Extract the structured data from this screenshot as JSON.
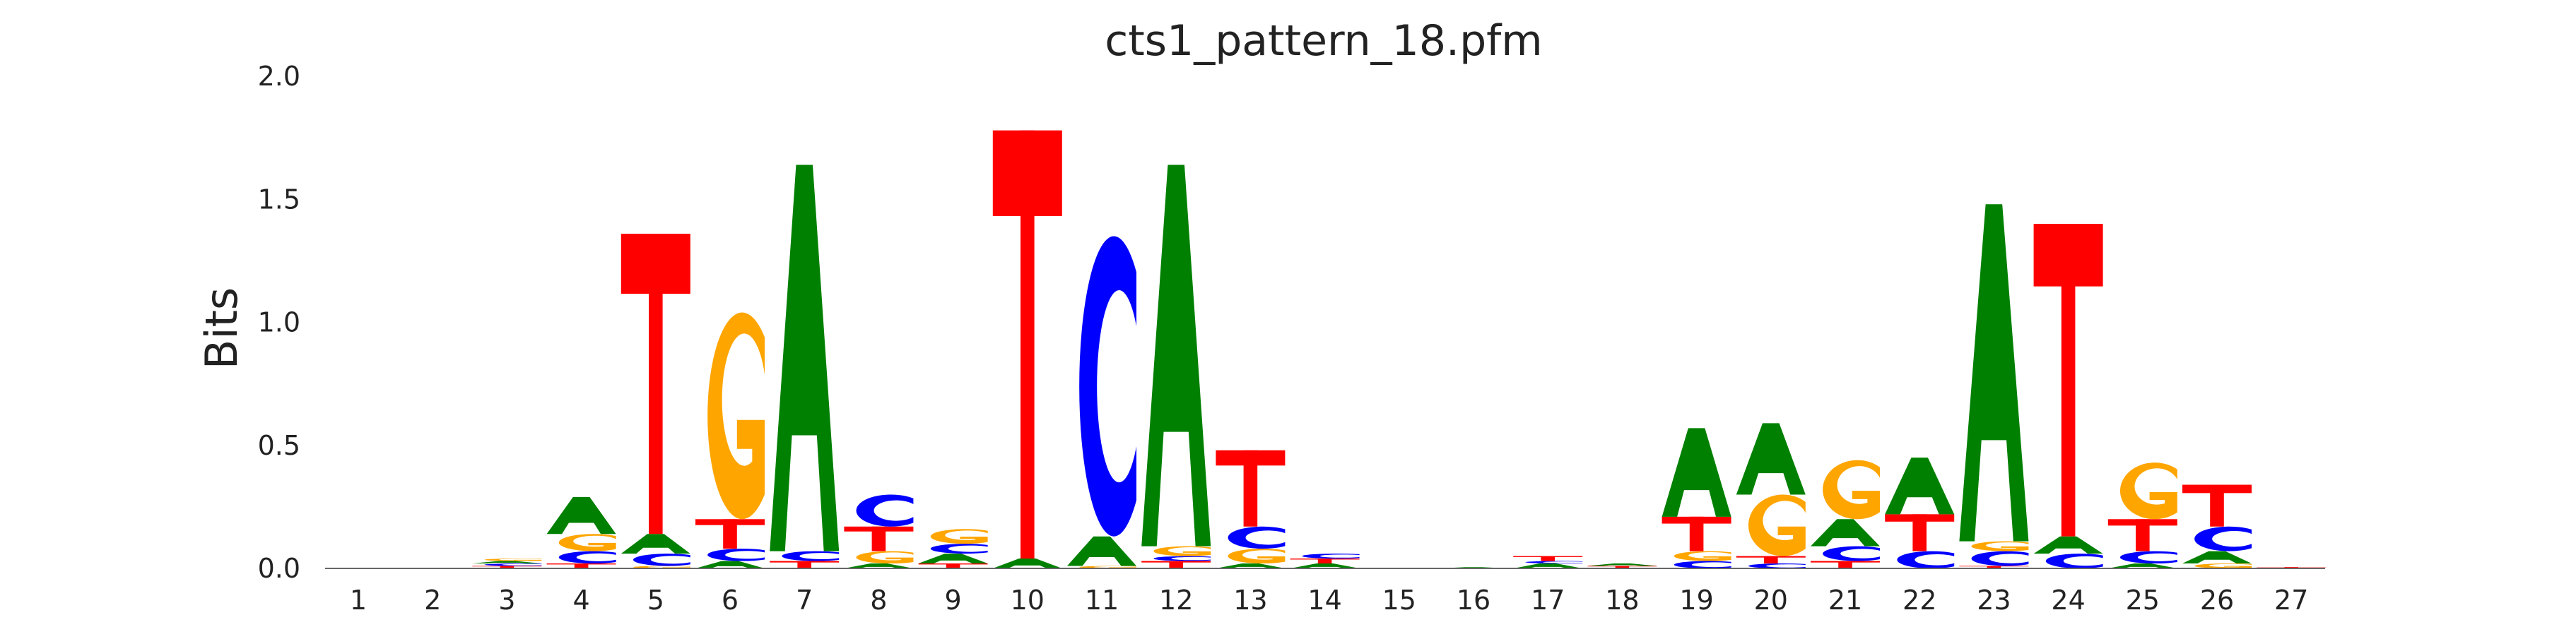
{
  "chart_data": {
    "type": "sequence-logo",
    "title": "cts1_pattern_18.pfm",
    "xlabel": "",
    "ylabel": "Bits",
    "ylim": [
      0,
      2.0
    ],
    "yticks": [
      "0.0",
      "0.5",
      "1.0",
      "1.5",
      "2.0"
    ],
    "positions": [
      "1",
      "2",
      "3",
      "4",
      "5",
      "6",
      "7",
      "8",
      "9",
      "10",
      "11",
      "12",
      "13",
      "14",
      "15",
      "16",
      "17",
      "18",
      "19",
      "20",
      "21",
      "22",
      "23",
      "24",
      "25",
      "26",
      "27"
    ],
    "grid": false,
    "legend": "none",
    "colors": {
      "A": "#008000",
      "C": "#0000ff",
      "G": "#ffa500",
      "T": "#ff0000"
    },
    "columns": [
      [],
      [],
      [
        [
          "T",
          0.01
        ],
        [
          "C",
          0.01
        ],
        [
          "A",
          0.01
        ],
        [
          "G",
          0.01
        ]
      ],
      [
        [
          "T",
          0.02
        ],
        [
          "C",
          0.05
        ],
        [
          "G",
          0.07
        ],
        [
          "A",
          0.15
        ]
      ],
      [
        [
          "G",
          0.01
        ],
        [
          "C",
          0.05
        ],
        [
          "A",
          0.08
        ],
        [
          "T",
          1.22
        ]
      ],
      [
        [
          "A",
          0.03
        ],
        [
          "C",
          0.05
        ],
        [
          "T",
          0.12
        ],
        [
          "G",
          0.84
        ]
      ],
      [
        [
          "T",
          0.03
        ],
        [
          "C",
          0.04
        ],
        [
          "A",
          1.57
        ]
      ],
      [
        [
          "A",
          0.02
        ],
        [
          "G",
          0.05
        ],
        [
          "T",
          0.1
        ],
        [
          "C",
          0.13
        ]
      ],
      [
        [
          "T",
          0.02
        ],
        [
          "A",
          0.04
        ],
        [
          "C",
          0.04
        ],
        [
          "G",
          0.06
        ]
      ],
      [
        [
          "A",
          0.04
        ],
        [
          "T",
          1.74
        ]
      ],
      [
        [
          "G",
          0.01
        ],
        [
          "A",
          0.12
        ],
        [
          "C",
          1.22
        ]
      ],
      [
        [
          "T",
          0.03
        ],
        [
          "C",
          0.02
        ],
        [
          "G",
          0.04
        ],
        [
          "A",
          1.55
        ]
      ],
      [
        [
          "A",
          0.02
        ],
        [
          "G",
          0.06
        ],
        [
          "C",
          0.09
        ],
        [
          "T",
          0.31
        ]
      ],
      [
        [
          "A",
          0.02
        ],
        [
          "T",
          0.02
        ],
        [
          "C",
          0.02
        ]
      ],
      [],
      [
        [
          "A",
          0.005
        ]
      ],
      [
        [
          "A",
          0.02
        ],
        [
          "C",
          0.01
        ],
        [
          "T",
          0.02
        ]
      ],
      [
        [
          "T",
          0.01
        ],
        [
          "A",
          0.01
        ]
      ],
      [
        [
          "C",
          0.03
        ],
        [
          "G",
          0.04
        ],
        [
          "T",
          0.14
        ],
        [
          "A",
          0.36
        ]
      ],
      [
        [
          "C",
          0.02
        ],
        [
          "T",
          0.03
        ],
        [
          "G",
          0.25
        ],
        [
          "A",
          0.29
        ]
      ],
      [
        [
          "T",
          0.03
        ],
        [
          "C",
          0.06
        ],
        [
          "A",
          0.11
        ],
        [
          "G",
          0.24
        ]
      ],
      [
        [
          "C",
          0.07
        ],
        [
          "T",
          0.15
        ],
        [
          "A",
          0.23
        ]
      ],
      [
        [
          "T",
          0.01
        ],
        [
          "C",
          0.06
        ],
        [
          "G",
          0.04
        ],
        [
          "A",
          1.37
        ]
      ],
      [
        [
          "C",
          0.06
        ],
        [
          "A",
          0.07
        ],
        [
          "T",
          1.27
        ]
      ],
      [
        [
          "A",
          0.02
        ],
        [
          "C",
          0.05
        ],
        [
          "T",
          0.13
        ],
        [
          "G",
          0.23
        ]
      ],
      [
        [
          "G",
          0.02
        ],
        [
          "A",
          0.05
        ],
        [
          "C",
          0.1
        ],
        [
          "T",
          0.17
        ]
      ],
      [
        [
          "T",
          0.005
        ]
      ]
    ]
  }
}
